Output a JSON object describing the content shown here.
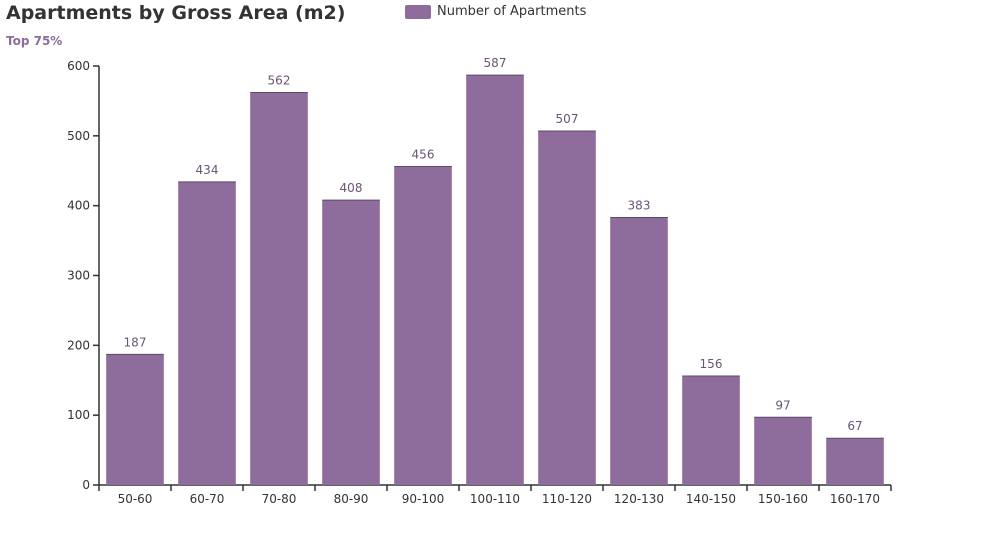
{
  "colors": {
    "bar": "#8e6c9b",
    "title": "#333333",
    "subtitle": "#8e6c9b",
    "axis": "#333333",
    "data_label": "#6a5575"
  },
  "chart_data": {
    "type": "bar",
    "title": "Apartments by Gross Area (m2)",
    "subtitle": "Top 75%",
    "categories": [
      "50-60",
      "60-70",
      "70-80",
      "80-90",
      "90-100",
      "100-110",
      "110-120",
      "120-130",
      "140-150",
      "150-160",
      "160-170"
    ],
    "series": [
      {
        "name": "Number of Apartments",
        "values": [
          187,
          434,
          562,
          408,
          456,
          587,
          507,
          383,
          156,
          97,
          67
        ]
      }
    ],
    "ylim": [
      0,
      600
    ],
    "yticks": [
      0,
      100,
      200,
      300,
      400,
      500,
      600
    ],
    "legend_position": "top-center",
    "grid": false,
    "data_labels": true
  }
}
